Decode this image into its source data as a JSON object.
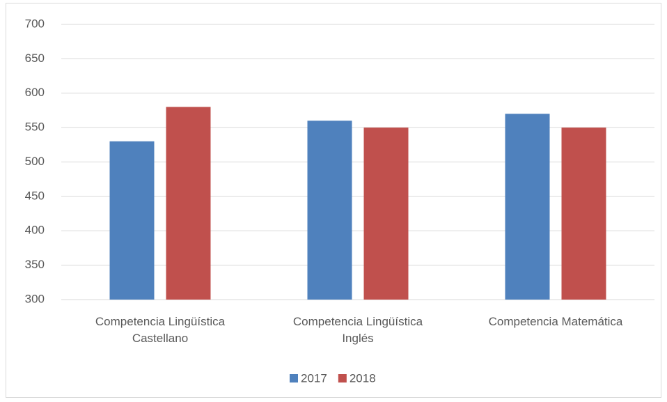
{
  "chart_data": {
    "type": "bar",
    "categories": [
      "Competencia Lingüística Castellano",
      "Competencia Lingüística Inglés",
      "Competencia Matemática"
    ],
    "series": [
      {
        "name": "2017",
        "color": "#4f81bd",
        "values": [
          530,
          560,
          570
        ]
      },
      {
        "name": "2018",
        "color": "#c0504d",
        "values": [
          580,
          550,
          550
        ]
      }
    ],
    "ylim": [
      300,
      700
    ],
    "yticks": [
      300,
      350,
      400,
      450,
      500,
      550,
      600,
      650,
      700
    ],
    "grid": true,
    "legend": "bottom"
  }
}
